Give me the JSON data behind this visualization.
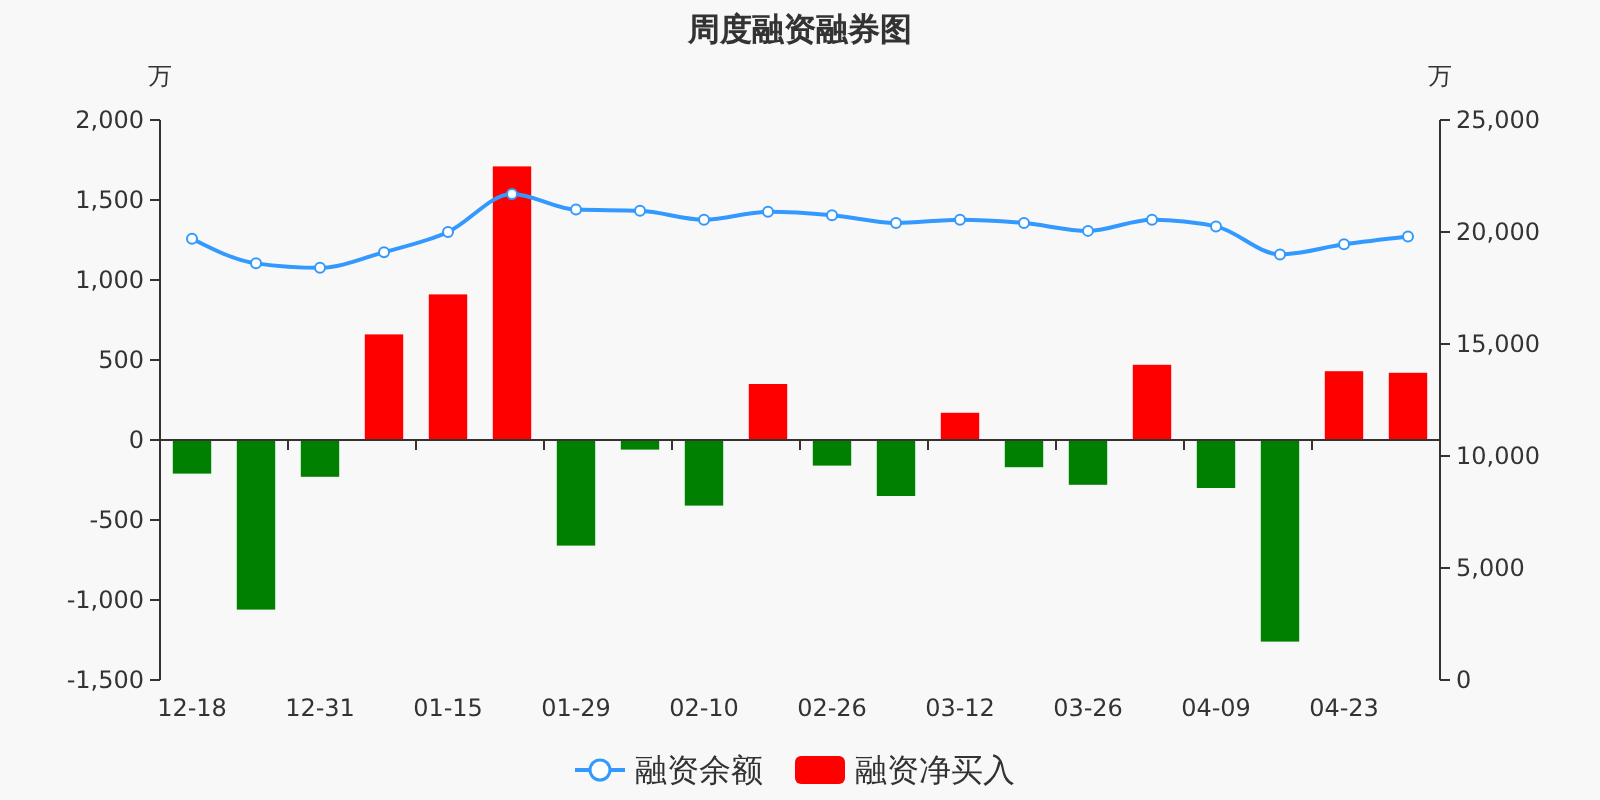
{
  "chart_data": {
    "type": "bar",
    "title": "周度融资融券图",
    "ylabel": "万",
    "y2label": "万",
    "categories": [
      "12-18",
      null,
      "12-31",
      null,
      "01-15",
      null,
      "01-29",
      null,
      "02-10",
      null,
      "02-26",
      null,
      "03-12",
      null,
      "03-26",
      null,
      "04-09",
      null,
      "04-23",
      null
    ],
    "series": [
      {
        "name": "融资余额",
        "type": "line",
        "axis": "y2",
        "color": "#3399ff",
        "marker": "circle",
        "values": [
          19700,
          18600,
          18400,
          19100,
          20000,
          21700,
          21000,
          20950,
          20550,
          20900,
          20750,
          20400,
          20550,
          20400,
          20050,
          20550,
          20250,
          19000,
          19450,
          19800
        ]
      },
      {
        "name": "融资净买入",
        "color": "#ff0000",
        "colors": [
          "#008000",
          "#008000",
          "#008000",
          "#ff0000",
          "#ff0000",
          "#ff0000",
          "#008000",
          "#008000",
          "#008000",
          "#ff0000",
          "#008000",
          "#008000",
          "#ff0000",
          "#008000",
          "#008000",
          "#ff0000",
          "#008000",
          "#008000",
          "#ff0000",
          "#ff0000"
        ],
        "values": [
          -210,
          -1060,
          -230,
          660,
          910,
          1710,
          -660,
          -60,
          -410,
          350,
          -160,
          -350,
          170,
          -170,
          -280,
          470,
          -300,
          -1260,
          430,
          420
        ]
      }
    ],
    "ylim": [
      -1500,
      2000
    ],
    "yticks": [
      {
        "value": -1500,
        "label": "-1,500"
      },
      {
        "value": -1000,
        "label": "-1,000"
      },
      -500,
      0,
      500,
      {
        "value": 1000,
        "label": "1,000"
      },
      {
        "value": 1500,
        "label": "1,500"
      },
      {
        "value": 2000,
        "label": "2,000"
      }
    ],
    "y2lim": [
      0,
      25000
    ],
    "y2ticks": [
      0,
      {
        "value": 5000,
        "label": "5,000"
      },
      {
        "value": 10000,
        "label": "10,000"
      },
      {
        "value": 15000,
        "label": "15,000"
      },
      {
        "value": 20000,
        "label": "20,000"
      },
      {
        "value": 25000,
        "label": "25,000"
      }
    ],
    "legend": "bottom"
  }
}
